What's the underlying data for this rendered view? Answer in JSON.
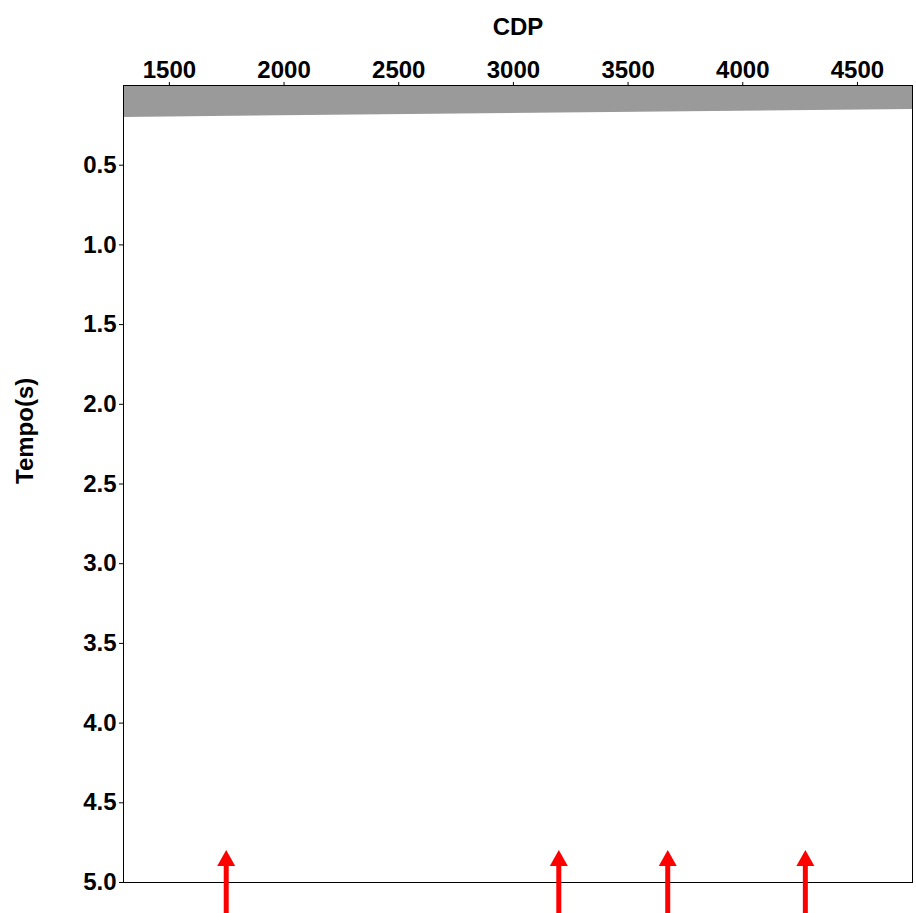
{
  "chart_data": {
    "type": "seismic_section",
    "x_label": "CDP",
    "y_label": "Tempo(s)",
    "xlim": [
      1300,
      4740
    ],
    "xticks": [
      1500,
      2000,
      2500,
      3000,
      3500,
      4000,
      4500
    ],
    "ylim": [
      0,
      5
    ],
    "yticks": [
      0.5,
      {
        "value": 1,
        "label": "1.0"
      },
      1.5,
      {
        "value": 2,
        "label": "2.0"
      },
      2.5,
      {
        "value": 3,
        "label": "3.0"
      },
      3.5,
      {
        "value": 4,
        "label": "4.0"
      },
      4.5,
      {
        "value": 5,
        "label": "5.0"
      }
    ],
    "no_data": {
      "x": [
        1300,
        4740
      ],
      "t": [
        0.2,
        0.15
      ],
      "color": "#9a9a9a"
    },
    "arrows": {
      "x": [
        1750,
        3200,
        3675,
        4275
      ],
      "tip": 4.8,
      "color": "red"
    }
  }
}
